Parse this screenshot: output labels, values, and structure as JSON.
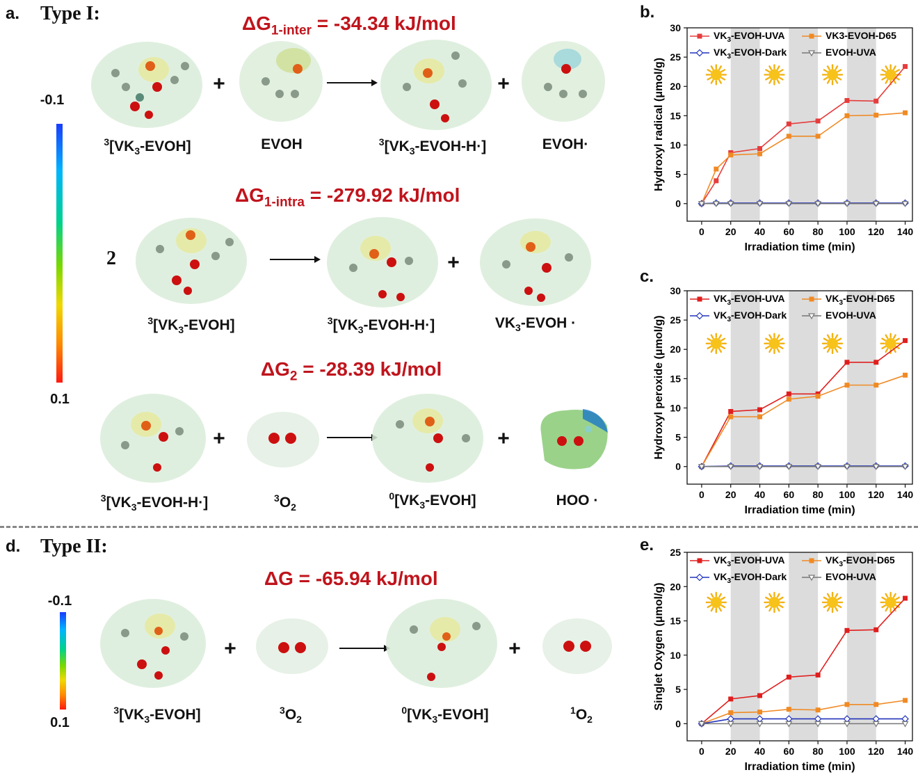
{
  "panels": {
    "a": "a.",
    "type1": "Type I:",
    "d": "d.",
    "type2": "Type II:",
    "b": "b.",
    "c": "c.",
    "e": "e."
  },
  "colorbar": {
    "top": "-0.1",
    "bottom": "0.1"
  },
  "reactions": {
    "r1": {
      "dg_prefix": "ΔG",
      "dg_sub": "1-inter",
      "dg_value": " = -34.34 kJ/mol"
    },
    "r2": {
      "dg_prefix": "ΔG",
      "dg_sub": "1-intra",
      "dg_value": " = -279.92 kJ/mol"
    },
    "r3": {
      "dg_prefix": "ΔG",
      "dg_sub": "2",
      "dg_value": " = -28.39 kJ/mol"
    },
    "r4": {
      "dg_prefix": "ΔG",
      "dg_sub": "",
      "dg_value": " = -65.94 kJ/mol"
    },
    "coef": "2",
    "plus": "+"
  },
  "labels": {
    "r1_1": {
      "sup": "3",
      "a": "[VK",
      "sub": "3",
      "b": "-EVOH]"
    },
    "r1_2": {
      "sup": "",
      "a": "EVOH",
      "sub": "",
      "b": ""
    },
    "r1_3": {
      "sup": "3",
      "a": "[VK",
      "sub": "3",
      "b": "-EVOH-H·]"
    },
    "r1_4": {
      "sup": "",
      "a": "EVOH·",
      "sub": "",
      "b": ""
    },
    "r2_1": {
      "sup": "3",
      "a": "[VK",
      "sub": "3",
      "b": "-EVOH]"
    },
    "r2_2": {
      "sup": "3",
      "a": "[VK",
      "sub": "3",
      "b": "-EVOH-H·]"
    },
    "r2_3": {
      "sup": "",
      "a": "VK",
      "sub": "3",
      "b": "-EVOH ·"
    },
    "r3_1": {
      "sup": "3",
      "a": "[VK",
      "sub": "3",
      "b": "-EVOH-H·]"
    },
    "r3_2": {
      "sup": "3",
      "a": "O",
      "sub": "2",
      "b": ""
    },
    "r3_3": {
      "sup": "0",
      "a": "[VK",
      "sub": "3",
      "b": "-EVOH]"
    },
    "r3_4": {
      "sup": "",
      "a": "HOO ·",
      "sub": "",
      "b": ""
    },
    "r4_1": {
      "sup": "3",
      "a": "[VK",
      "sub": "3",
      "b": "-EVOH]"
    },
    "r4_2": {
      "sup": "3",
      "a": "O",
      "sub": "2",
      "b": ""
    },
    "r4_3": {
      "sup": "0",
      "a": "[VK",
      "sub": "3",
      "b": "-EVOH]"
    },
    "r4_4": {
      "sup": "1",
      "a": "O",
      "sub": "2",
      "b": ""
    }
  },
  "chart_data": [
    {
      "id": "b",
      "type": "line",
      "title": "",
      "xlabel": "Irradiation time (min)",
      "ylabel": "Hydroxyl radical (μmol/g)",
      "xlim": [
        -10,
        145
      ],
      "ylim": [
        -3,
        30
      ],
      "xticks": [
        0,
        20,
        40,
        60,
        80,
        100,
        120,
        140
      ],
      "yticks": [
        0,
        5,
        10,
        15,
        20,
        25,
        30
      ],
      "dark_bands": [
        [
          20,
          40
        ],
        [
          60,
          80
        ],
        [
          100,
          120
        ]
      ],
      "sun_x": [
        0,
        40,
        80,
        120
      ],
      "sun_y": 22,
      "series": [
        {
          "name": "VK",
          "name_sub": "3",
          "name_rest": "-EVOH-UVA",
          "color": "#e63c3c",
          "marker": "square",
          "x": [
            0,
            10,
            20,
            40,
            60,
            80,
            100,
            120,
            140
          ],
          "values": [
            0,
            3.9,
            8.7,
            9.4,
            13.6,
            14.1,
            17.6,
            17.5,
            23.4
          ]
        },
        {
          "name": "VK3-EVOH-D65",
          "name_sub": "",
          "name_rest": "",
          "color": "#f08a24",
          "marker": "square",
          "x": [
            0,
            10,
            20,
            40,
            60,
            80,
            100,
            120,
            140
          ],
          "values": [
            0,
            5.9,
            8.3,
            8.5,
            11.5,
            11.5,
            15.0,
            15.1,
            15.5
          ]
        },
        {
          "name": "VK",
          "name_sub": "3",
          "name_rest": "-EVOH-Dark",
          "color": "#2233bb",
          "marker": "diamond",
          "x": [
            0,
            10,
            20,
            40,
            60,
            80,
            100,
            120,
            140
          ],
          "values": [
            0,
            0.1,
            0.1,
            0.1,
            0.1,
            0.1,
            0.1,
            0.1,
            0.1
          ]
        },
        {
          "name": "EVOH-UVA",
          "name_sub": "",
          "name_rest": "",
          "color": "#777777",
          "marker": "triangle",
          "x": [
            0,
            10,
            20,
            40,
            60,
            80,
            100,
            120,
            140
          ],
          "values": [
            0,
            0,
            0,
            0,
            0,
            0,
            0,
            0,
            0
          ]
        }
      ]
    },
    {
      "id": "c",
      "type": "line",
      "title": "",
      "xlabel": "Irradiation time (min)",
      "ylabel": "Hydroxyl peroxide (μmol/g)",
      "xlim": [
        -10,
        145
      ],
      "ylim": [
        -3,
        30
      ],
      "xticks": [
        0,
        20,
        40,
        60,
        80,
        100,
        120,
        140
      ],
      "yticks": [
        0,
        5,
        10,
        15,
        20,
        25,
        30
      ],
      "dark_bands": [
        [
          20,
          40
        ],
        [
          60,
          80
        ],
        [
          100,
          120
        ]
      ],
      "sun_x": [
        0,
        40,
        80,
        120
      ],
      "sun_y": 21,
      "series": [
        {
          "name": "VK",
          "name_sub": "3",
          "name_rest": "-EVOH-UVA",
          "color": "#e01e1e",
          "marker": "square",
          "x": [
            0,
            20,
            40,
            60,
            80,
            100,
            120,
            140
          ],
          "values": [
            0,
            9.4,
            9.7,
            12.4,
            12.4,
            17.8,
            17.8,
            21.5
          ]
        },
        {
          "name": "VK",
          "name_sub": "3",
          "name_rest": "-EVOH-D65",
          "color": "#f08a24",
          "marker": "square",
          "x": [
            0,
            20,
            40,
            60,
            80,
            100,
            120,
            140
          ],
          "values": [
            0,
            8.5,
            8.5,
            11.5,
            12.0,
            13.9,
            13.9,
            15.6
          ]
        },
        {
          "name": "VK",
          "name_sub": "3",
          "name_rest": "-EVOH-Dark",
          "color": "#2233bb",
          "marker": "diamond",
          "x": [
            0,
            20,
            40,
            60,
            80,
            100,
            120,
            140
          ],
          "values": [
            0,
            0.1,
            0.1,
            0.1,
            0.1,
            0.1,
            0.1,
            0.1
          ]
        },
        {
          "name": "EVOH-UVA",
          "name_sub": "",
          "name_rest": "",
          "color": "#777777",
          "marker": "triangle",
          "x": [
            0,
            20,
            40,
            60,
            80,
            100,
            120,
            140
          ],
          "values": [
            0,
            0,
            0,
            0,
            0,
            0,
            0,
            0
          ]
        }
      ]
    },
    {
      "id": "e",
      "type": "line",
      "title": "",
      "xlabel": "Irradiation time (min)",
      "ylabel": "Singlet Oxygen (μmol/g)",
      "xlim": [
        -10,
        145
      ],
      "ylim": [
        -2.5,
        25
      ],
      "xticks": [
        0,
        20,
        40,
        60,
        80,
        100,
        120,
        140
      ],
      "yticks": [
        0,
        5,
        10,
        15,
        20,
        25
      ],
      "dark_bands": [
        [
          20,
          40
        ],
        [
          60,
          80
        ],
        [
          100,
          120
        ]
      ],
      "sun_x": [
        0,
        40,
        80,
        120
      ],
      "sun_y": 17.7,
      "series": [
        {
          "name": "VK",
          "name_sub": "3",
          "name_rest": "-EVOH-UVA",
          "color": "#e01e1e",
          "marker": "square",
          "x": [
            0,
            20,
            40,
            60,
            80,
            100,
            120,
            140
          ],
          "values": [
            0,
            3.6,
            4.1,
            6.8,
            7.1,
            13.6,
            13.7,
            18.3
          ]
        },
        {
          "name": "VK",
          "name_sub": "3",
          "name_rest": "-EVOH-D65",
          "color": "#f08a24",
          "marker": "square",
          "x": [
            0,
            20,
            40,
            60,
            80,
            100,
            120,
            140
          ],
          "values": [
            0,
            1.6,
            1.7,
            2.1,
            2.0,
            2.8,
            2.8,
            3.4
          ]
        },
        {
          "name": "VK",
          "name_sub": "3",
          "name_rest": "-EVOH-Dark",
          "color": "#2233bb",
          "marker": "diamond",
          "x": [
            0,
            20,
            40,
            60,
            80,
            100,
            120,
            140
          ],
          "values": [
            0,
            0.7,
            0.7,
            0.7,
            0.7,
            0.7,
            0.7,
            0.7
          ]
        },
        {
          "name": "EVOH-UVA",
          "name_sub": "",
          "name_rest": "",
          "color": "#777777",
          "marker": "triangle",
          "x": [
            0,
            20,
            40,
            60,
            80,
            100,
            120,
            140
          ],
          "values": [
            0,
            0,
            0,
            0,
            0,
            0,
            0,
            0
          ]
        }
      ]
    }
  ]
}
